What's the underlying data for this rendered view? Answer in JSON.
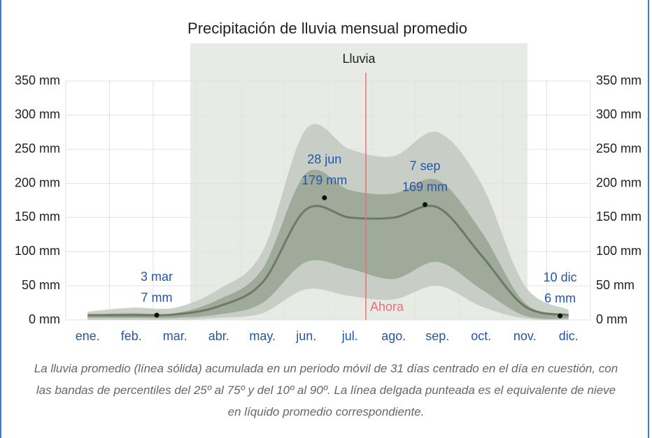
{
  "chart_data": {
    "type": "line",
    "title": "Precipitación de lluvia mensual promedio",
    "season_label": "Lluvia",
    "now_label": "Ahora",
    "categories": [
      "ene.",
      "feb.",
      "mar.",
      "abr.",
      "may.",
      "jun.",
      "jul.",
      "ago.",
      "sep.",
      "oct.",
      "nov.",
      "dic."
    ],
    "series": [
      {
        "color": "#6b7a64",
        "values": [
          7,
          7,
          8,
          20,
          55,
          162,
          150,
          150,
          165,
          95,
          20,
          7
        ]
      }
    ],
    "bands": [
      {
        "color": "#c2c8bf",
        "low": [
          0,
          0,
          0,
          3,
          10,
          45,
          35,
          30,
          50,
          20,
          2,
          0
        ],
        "high": [
          12,
          18,
          18,
          45,
          100,
          280,
          250,
          240,
          275,
          200,
          50,
          15
        ]
      },
      {
        "color": "#98a393",
        "low": [
          3,
          3,
          3,
          8,
          25,
          85,
          75,
          60,
          85,
          45,
          6,
          2
        ],
        "high": [
          8,
          10,
          10,
          30,
          75,
          215,
          190,
          185,
          205,
          130,
          25,
          8
        ]
      }
    ],
    "annotations": [
      {
        "date": "3 mar",
        "value": 7,
        "label": "7 mm"
      },
      {
        "date": "28 jun",
        "value": 179,
        "label": "179 mm"
      },
      {
        "date": "7 sep",
        "value": 169,
        "label": "169 mm"
      },
      {
        "date": "10 dic",
        "value": 6,
        "label": "6 mm"
      }
    ],
    "ylim": [
      0,
      350
    ],
    "yticks": [
      {
        "value": 0,
        "label": "0 mm"
      },
      {
        "value": 50,
        "label": "50 mm"
      },
      {
        "value": 100,
        "label": "100 mm"
      },
      {
        "value": 150,
        "label": "150 mm"
      },
      {
        "value": 200,
        "label": "200 mm"
      },
      {
        "value": 250,
        "label": "250 mm"
      },
      {
        "value": 300,
        "label": "300 mm"
      },
      {
        "value": 350,
        "label": "350 mm"
      }
    ],
    "grid": true,
    "caption": "La lluvia promedio (línea sólida) acumulada en un periodo móvil de 31 días centrado en el día en cuestión, con las bandas de percentiles del 25º al 75º y del 10º al 90º. La línea delgada punteada es el equivalente de nieve en líquido promedio correspondiente."
  }
}
